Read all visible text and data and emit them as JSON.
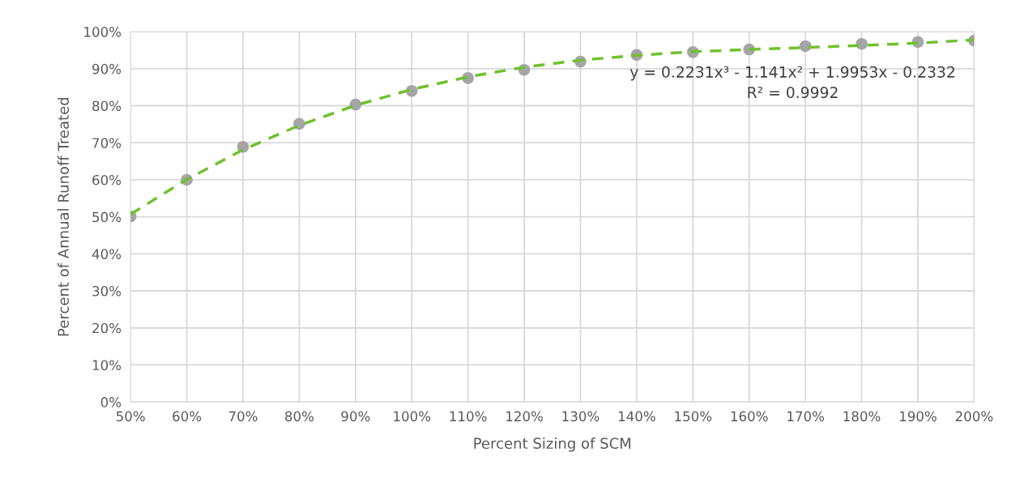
{
  "chart_data": {
    "type": "scatter",
    "xlabel": "Percent Sizing of SCM",
    "ylabel": "Percent of Annual Runoff Treated",
    "x": [
      50,
      60,
      70,
      80,
      90,
      100,
      110,
      120,
      130,
      140,
      150,
      160,
      170,
      180,
      190,
      200
    ],
    "series": [
      {
        "color": "#a5a5a5",
        "marker": "circle",
        "values": [
          50.1,
          60.0,
          68.9,
          75.1,
          80.3,
          84.0,
          87.5,
          89.7,
          91.9,
          93.7,
          94.5,
          95.2,
          96.1,
          96.7,
          97.2,
          97.6
        ]
      },
      {
        "type": "line",
        "color": "#70c12e",
        "line_style": "dashed",
        "marker": "none",
        "x": [
          50,
          60,
          70,
          80,
          90,
          100,
          110,
          120,
          130,
          140,
          150,
          160,
          170,
          180,
          190,
          200
        ],
        "values": [
          50.7,
          60.1,
          68.1,
          74.7,
          80.1,
          84.4,
          87.8,
          90.4,
          92.3,
          93.6,
          94.6,
          95.2,
          95.7,
          96.3,
          96.9,
          97.8
        ]
      }
    ],
    "xlim": [
      50,
      200
    ],
    "xticks": [
      {
        "value": 50,
        "label": "50%"
      },
      {
        "value": 60,
        "label": "60%"
      },
      {
        "value": 70,
        "label": "70%"
      },
      {
        "value": 80,
        "label": "80%"
      },
      {
        "value": 90,
        "label": "90%"
      },
      {
        "value": 100,
        "label": "100%"
      },
      {
        "value": 110,
        "label": "110%"
      },
      {
        "value": 120,
        "label": "120%"
      },
      {
        "value": 130,
        "label": "130%"
      },
      {
        "value": 140,
        "label": "140%"
      },
      {
        "value": 150,
        "label": "150%"
      },
      {
        "value": 160,
        "label": "160%"
      },
      {
        "value": 170,
        "label": "170%"
      },
      {
        "value": 180,
        "label": "180%"
      },
      {
        "value": 190,
        "label": "190%"
      },
      {
        "value": 200,
        "label": "200%"
      }
    ],
    "ylim": [
      0,
      100
    ],
    "yticks": [
      {
        "value": 0,
        "label": "0%"
      },
      {
        "value": 10,
        "label": "10%"
      },
      {
        "value": 20,
        "label": "20%"
      },
      {
        "value": 30,
        "label": "30%"
      },
      {
        "value": 40,
        "label": "40%"
      },
      {
        "value": 50,
        "label": "50%"
      },
      {
        "value": 60,
        "label": "60%"
      },
      {
        "value": 70,
        "label": "70%"
      },
      {
        "value": 80,
        "label": "80%"
      },
      {
        "value": 90,
        "label": "90%"
      },
      {
        "value": 100,
        "label": "100%"
      }
    ],
    "grid": true,
    "annotations": [
      "y = 0.2231x³ - 1.141x² + 1.9953x - 0.2332\nR² = 0.9992"
    ]
  }
}
